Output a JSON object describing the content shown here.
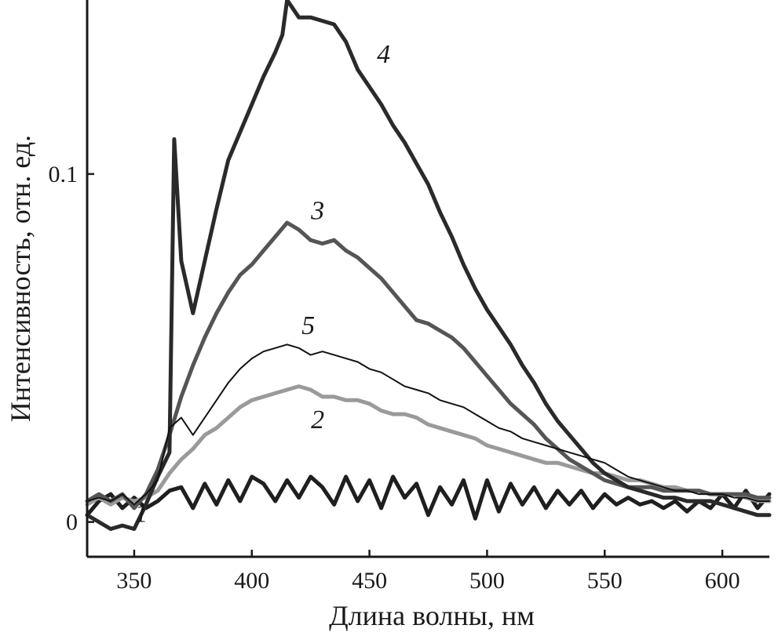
{
  "chart_data": {
    "type": "line",
    "title": "",
    "xlabel": "Длина волны, нм",
    "ylabel": "Интенсивность, отн. ед.",
    "xlim": [
      330,
      620
    ],
    "ylim": [
      -0.01,
      0.15
    ],
    "xticks": [
      350,
      400,
      450,
      500,
      550,
      600
    ],
    "yticks": [
      {
        "value": 0,
        "label": "0"
      },
      {
        "value": 0.1,
        "label": "0.1"
      }
    ],
    "grid": false,
    "legend": "none",
    "series": [
      {
        "label": "1",
        "label_at": [
          353,
          0.0
        ],
        "color": "#1f1f1f",
        "width": 5,
        "x": [
          330,
          335,
          340,
          345,
          350,
          355,
          360,
          365,
          370,
          375,
          380,
          385,
          390,
          395,
          400,
          405,
          410,
          415,
          420,
          425,
          430,
          435,
          440,
          445,
          450,
          455,
          460,
          465,
          470,
          475,
          480,
          485,
          490,
          495,
          500,
          505,
          510,
          515,
          520,
          525,
          530,
          535,
          540,
          545,
          550,
          555,
          560,
          565,
          570,
          575,
          580,
          585,
          590,
          595,
          600,
          605,
          610,
          615,
          620
        ],
        "y": [
          0.002,
          0.006,
          0.008,
          0.004,
          0.007,
          0.004,
          0.006,
          0.009,
          0.01,
          0.004,
          0.011,
          0.005,
          0.012,
          0.006,
          0.013,
          0.011,
          0.006,
          0.012,
          0.007,
          0.013,
          0.01,
          0.005,
          0.013,
          0.006,
          0.012,
          0.004,
          0.013,
          0.007,
          0.011,
          0.002,
          0.01,
          0.005,
          0.012,
          0.001,
          0.012,
          0.003,
          0.011,
          0.005,
          0.01,
          0.004,
          0.009,
          0.005,
          0.009,
          0.004,
          0.008,
          0.005,
          0.007,
          0.005,
          0.006,
          0.004,
          0.006,
          0.003,
          0.006,
          0.004,
          0.008,
          0.004,
          0.009,
          0.004,
          0.008
        ]
      },
      {
        "label": "2",
        "label_at": [
          428,
          0.027
        ],
        "color": "#9a9a9a",
        "width": 5,
        "x": [
          330,
          335,
          340,
          345,
          350,
          355,
          360,
          365,
          370,
          375,
          380,
          385,
          390,
          395,
          400,
          405,
          410,
          415,
          420,
          425,
          430,
          435,
          440,
          445,
          450,
          455,
          460,
          465,
          470,
          475,
          480,
          485,
          490,
          495,
          500,
          505,
          510,
          515,
          520,
          525,
          530,
          535,
          540,
          545,
          550,
          555,
          560,
          565,
          570,
          575,
          580,
          585,
          590,
          595,
          600,
          605,
          610,
          615,
          620
        ],
        "y": [
          0.005,
          0.007,
          0.005,
          0.007,
          0.006,
          0.007,
          0.009,
          0.014,
          0.018,
          0.021,
          0.025,
          0.027,
          0.03,
          0.033,
          0.035,
          0.036,
          0.037,
          0.038,
          0.039,
          0.038,
          0.036,
          0.036,
          0.035,
          0.035,
          0.034,
          0.032,
          0.031,
          0.031,
          0.03,
          0.028,
          0.027,
          0.026,
          0.025,
          0.024,
          0.022,
          0.021,
          0.02,
          0.019,
          0.018,
          0.017,
          0.017,
          0.016,
          0.015,
          0.014,
          0.014,
          0.013,
          0.012,
          0.012,
          0.011,
          0.01,
          0.01,
          0.009,
          0.009,
          0.008,
          0.008,
          0.008,
          0.007,
          0.006,
          0.006
        ]
      },
      {
        "label": "3",
        "label_at": [
          428,
          0.087
        ],
        "color": "#555555",
        "width": 5,
        "x": [
          330,
          335,
          340,
          345,
          350,
          355,
          360,
          365,
          370,
          375,
          380,
          385,
          390,
          395,
          400,
          405,
          410,
          415,
          420,
          425,
          430,
          435,
          440,
          445,
          450,
          455,
          460,
          465,
          470,
          475,
          480,
          485,
          490,
          495,
          500,
          505,
          510,
          515,
          520,
          525,
          530,
          535,
          540,
          545,
          550,
          555,
          560,
          565,
          570,
          575,
          580,
          585,
          590,
          595,
          600,
          605,
          610,
          615,
          620
        ],
        "y": [
          0.006,
          0.008,
          0.006,
          0.008,
          0.004,
          0.008,
          0.015,
          0.025,
          0.036,
          0.045,
          0.053,
          0.06,
          0.066,
          0.071,
          0.074,
          0.078,
          0.082,
          0.086,
          0.084,
          0.081,
          0.08,
          0.081,
          0.078,
          0.076,
          0.073,
          0.07,
          0.066,
          0.062,
          0.058,
          0.057,
          0.055,
          0.053,
          0.05,
          0.046,
          0.042,
          0.038,
          0.034,
          0.031,
          0.028,
          0.024,
          0.021,
          0.018,
          0.016,
          0.014,
          0.012,
          0.011,
          0.01,
          0.01,
          0.01,
          0.009,
          0.009,
          0.009,
          0.009,
          0.008,
          0.008,
          0.008,
          0.008,
          0.007,
          0.007
        ]
      },
      {
        "label": "4",
        "label_at": [
          456,
          0.132
        ],
        "color": "#2a2a2a",
        "width": 5,
        "x": [
          330,
          335,
          340,
          345,
          350,
          355,
          360,
          365,
          367,
          370,
          375,
          380,
          385,
          390,
          395,
          400,
          405,
          410,
          413,
          415,
          420,
          425,
          430,
          435,
          440,
          445,
          450,
          455,
          460,
          465,
          470,
          475,
          480,
          485,
          490,
          495,
          500,
          505,
          510,
          515,
          520,
          525,
          530,
          535,
          540,
          545,
          550,
          555,
          560,
          565,
          570,
          575,
          580,
          585,
          590,
          595,
          600,
          605,
          610,
          615,
          620
        ],
        "y": [
          0.002,
          0.0,
          -0.002,
          -0.001,
          -0.002,
          0.005,
          0.013,
          0.02,
          0.11,
          0.075,
          0.06,
          0.075,
          0.09,
          0.104,
          0.112,
          0.12,
          0.128,
          0.135,
          0.14,
          0.15,
          0.145,
          0.145,
          0.144,
          0.143,
          0.138,
          0.13,
          0.125,
          0.12,
          0.114,
          0.109,
          0.103,
          0.097,
          0.089,
          0.082,
          0.074,
          0.067,
          0.061,
          0.056,
          0.051,
          0.045,
          0.04,
          0.034,
          0.029,
          0.025,
          0.021,
          0.017,
          0.014,
          0.012,
          0.01,
          0.009,
          0.008,
          0.007,
          0.007,
          0.006,
          0.006,
          0.006,
          0.005,
          0.004,
          0.003,
          0.002,
          0.002
        ]
      },
      {
        "label": "5",
        "label_at": [
          424,
          0.054
        ],
        "color": "#111111",
        "width": 2,
        "x": [
          330,
          335,
          340,
          345,
          350,
          355,
          360,
          365,
          370,
          375,
          380,
          385,
          390,
          395,
          400,
          405,
          410,
          415,
          420,
          425,
          430,
          435,
          440,
          445,
          450,
          455,
          460,
          465,
          470,
          475,
          480,
          485,
          490,
          495,
          500,
          505,
          510,
          515,
          520,
          525,
          530,
          535,
          540,
          545,
          550,
          555,
          560,
          565,
          570,
          575,
          580,
          585,
          590,
          595,
          600,
          605,
          610,
          615,
          620
        ],
        "y": [
          0.006,
          0.007,
          0.006,
          0.008,
          0.005,
          0.008,
          0.012,
          0.027,
          0.03,
          0.025,
          0.03,
          0.035,
          0.04,
          0.044,
          0.047,
          0.049,
          0.05,
          0.051,
          0.05,
          0.048,
          0.049,
          0.048,
          0.047,
          0.046,
          0.044,
          0.043,
          0.041,
          0.039,
          0.038,
          0.037,
          0.035,
          0.034,
          0.033,
          0.031,
          0.029,
          0.027,
          0.026,
          0.024,
          0.023,
          0.022,
          0.021,
          0.02,
          0.019,
          0.018,
          0.017,
          0.015,
          0.013,
          0.012,
          0.011,
          0.01,
          0.009,
          0.009,
          0.008,
          0.008,
          0.008,
          0.007,
          0.007,
          0.006,
          0.006
        ]
      }
    ]
  }
}
